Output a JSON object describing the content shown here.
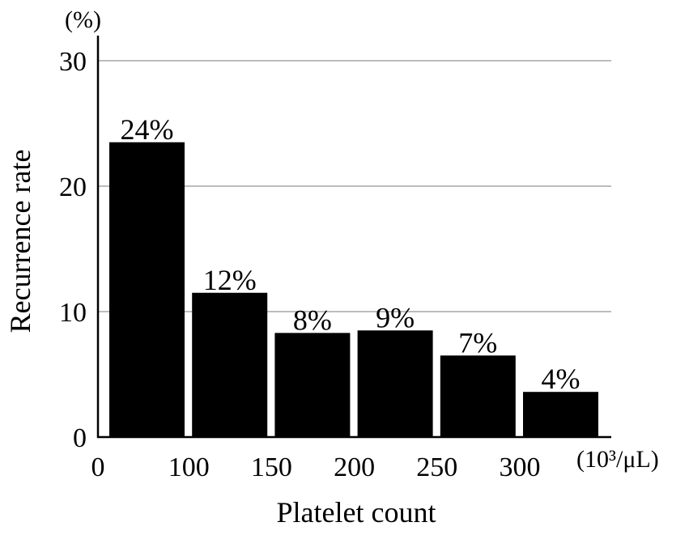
{
  "chart_data": {
    "type": "bar",
    "title": "",
    "xlabel": "Platelet count",
    "ylabel": "Recurrence rate",
    "y_unit": "(%)",
    "x_unit": "(10³/μL)",
    "x_ticks": [
      "0",
      "100",
      "150",
      "200",
      "250",
      "300"
    ],
    "y_ticks": [
      "0",
      "10",
      "20",
      "30"
    ],
    "ylim": [
      0,
      30
    ],
    "grid": true,
    "bars": [
      {
        "range": "<100",
        "value": 23.5,
        "label": "24%"
      },
      {
        "range": "100-150",
        "value": 11.5,
        "label": "12%"
      },
      {
        "range": "150-200",
        "value": 8.3,
        "label": "8%"
      },
      {
        "range": "200-250",
        "value": 8.5,
        "label": "9%"
      },
      {
        "range": "250-300",
        "value": 6.5,
        "label": "7%"
      },
      {
        "range": ">300",
        "value": 3.6,
        "label": "4%"
      }
    ],
    "bar_color": "#000000",
    "grid_color": "#a6a6a6"
  }
}
